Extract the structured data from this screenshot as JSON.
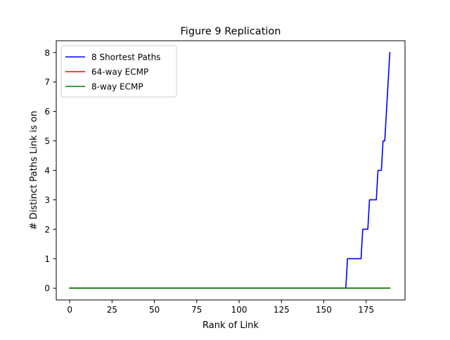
{
  "chart_data": {
    "type": "line",
    "title": "Figure 9 Replication",
    "xlabel": "Rank of Link",
    "ylabel": "# Distinct Paths Link is on",
    "xlim": [
      -7.95,
      197.95
    ],
    "ylim": [
      -0.4,
      8.4
    ],
    "xticks": [
      0,
      25,
      50,
      75,
      100,
      125,
      150,
      175
    ],
    "yticks": [
      0,
      1,
      2,
      3,
      4,
      5,
      6,
      7,
      8
    ],
    "grid": false,
    "legend_position": "upper-left",
    "series": [
      {
        "name": "8 Shortest Paths",
        "color": "#0000ff",
        "points": [
          [
            0,
            0
          ],
          [
            163,
            0
          ],
          [
            164,
            1
          ],
          [
            172,
            1
          ],
          [
            173,
            2
          ],
          [
            176,
            2
          ],
          [
            177,
            3
          ],
          [
            181,
            3
          ],
          [
            182,
            4
          ],
          [
            184,
            4
          ],
          [
            185,
            5
          ],
          [
            186,
            5
          ],
          [
            187,
            6
          ],
          [
            188,
            7
          ],
          [
            189,
            8
          ]
        ]
      },
      {
        "name": "64-way ECMP",
        "color": "#ff0000",
        "points": [
          [
            0,
            0
          ],
          [
            189,
            0
          ]
        ]
      },
      {
        "name": "8-way ECMP",
        "color": "#008000",
        "points": [
          [
            0,
            0
          ],
          [
            189,
            0
          ]
        ]
      }
    ]
  }
}
